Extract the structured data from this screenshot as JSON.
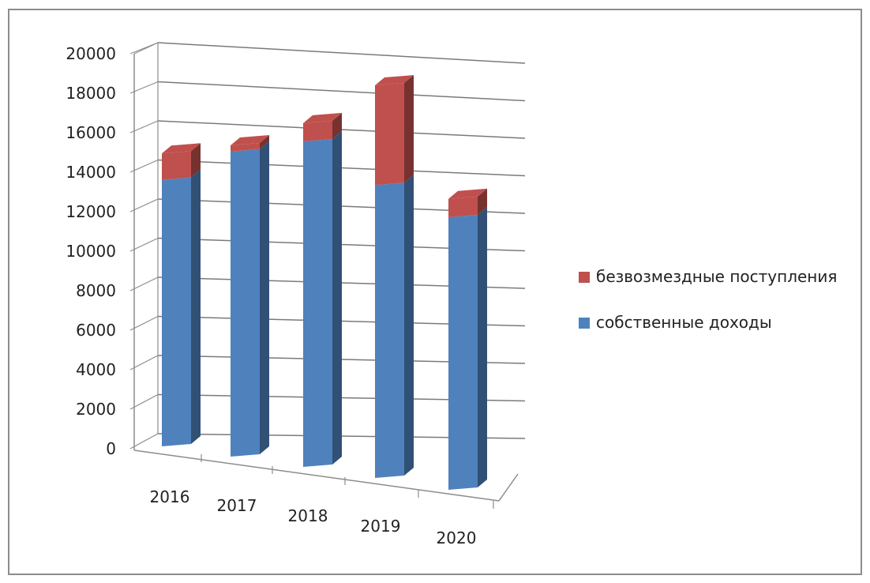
{
  "chart_data": {
    "type": "bar",
    "stacked": true,
    "style": "3d",
    "categories": [
      "2016",
      "2017",
      "2018",
      "2019",
      "2020"
    ],
    "series": [
      {
        "name": "собственные доходы",
        "color": "#4f81bd",
        "values": [
          13100,
          15000,
          16000,
          14400,
          13400
        ]
      },
      {
        "name": "безвозмездные поступления",
        "color": "#c0504d",
        "values": [
          1300,
          300,
          900,
          4900,
          900
        ]
      }
    ],
    "y_ticks": [
      0,
      2000,
      4000,
      6000,
      8000,
      10000,
      12000,
      14000,
      16000,
      18000,
      20000
    ],
    "ylim": [
      0,
      20000
    ],
    "grid": true,
    "legend_position": "right",
    "legend_order": [
      "безвозмездные поступления",
      "собственные доходы"
    ]
  }
}
